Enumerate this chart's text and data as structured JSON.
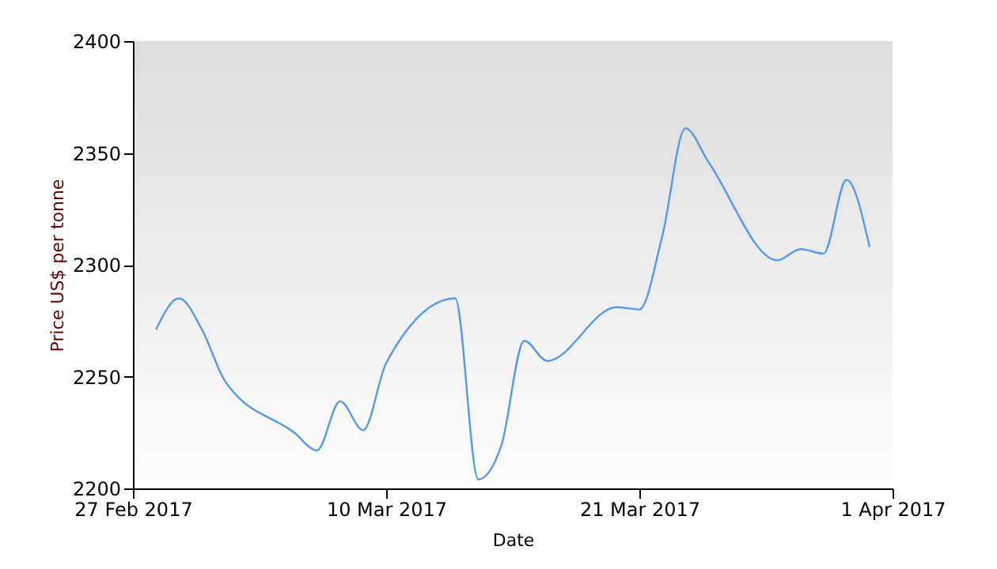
{
  "chart_data": {
    "type": "line",
    "xlabel": "Date",
    "ylabel": "Price US$ per tonne",
    "x": [
      "2017-02-28",
      "2017-03-01",
      "2017-03-02",
      "2017-03-03",
      "2017-03-06",
      "2017-03-07",
      "2017-03-08",
      "2017-03-09",
      "2017-03-10",
      "2017-03-13",
      "2017-03-14",
      "2017-03-15",
      "2017-03-16",
      "2017-03-17",
      "2017-03-20",
      "2017-03-21",
      "2017-03-22",
      "2017-03-23",
      "2017-03-24",
      "2017-03-27",
      "2017-03-28",
      "2017-03-29",
      "2017-03-30",
      "2017-03-31"
    ],
    "series": [
      {
        "color": "#5599ee",
        "values": [
          2271,
          2285,
          2271,
          2248,
          2225,
          2217,
          2239,
          2226,
          2256,
          2285,
          2204,
          2219,
          2266,
          2257,
          2281,
          2280,
          2313,
          2361,
          2346,
          2302,
          2307,
          2305,
          2338,
          2308
        ]
      }
    ],
    "xlim": [
      "2017-02-27",
      "2017-04-01"
    ],
    "xticks": [
      {
        "value": "2017-02-27",
        "label": "27 Feb 2017"
      },
      {
        "value": "2017-03-10",
        "label": "10 Mar 2017"
      },
      {
        "value": "2017-03-21",
        "label": "21 Mar 2017"
      },
      {
        "value": "2017-04-01",
        "label": "1 Apr 2017"
      }
    ],
    "ylim": [
      2200,
      2400
    ],
    "yticks": [
      2200,
      2250,
      2300,
      2350,
      2400
    ],
    "grid": false,
    "marker": "none",
    "line_style": "solid"
  }
}
